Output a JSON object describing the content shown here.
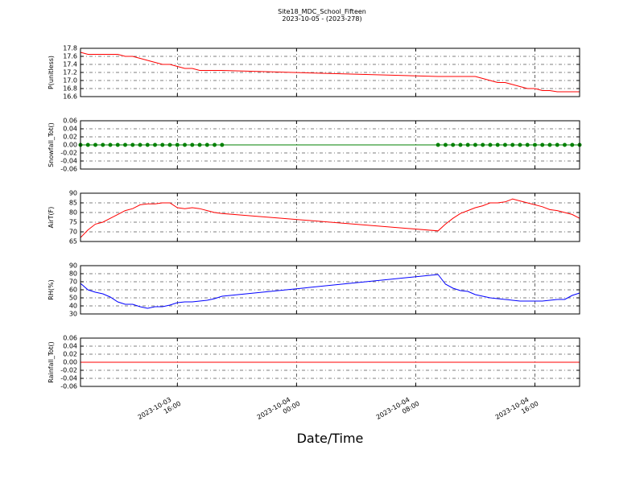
{
  "title": "Site18_MDC_School_Fifteen",
  "subtitle": "2023-10-05 - (2023-278)",
  "xlabel": "Date/Time",
  "x": [
    "2023-10-03 09:30",
    "2023-10-03 10:00",
    "2023-10-03 10:30",
    "2023-10-03 11:00",
    "2023-10-03 11:30",
    "2023-10-03 12:00",
    "2023-10-03 12:30",
    "2023-10-03 13:00",
    "2023-10-03 13:30",
    "2023-10-03 14:00",
    "2023-10-03 14:30",
    "2023-10-03 15:00",
    "2023-10-03 15:30",
    "2023-10-03 16:00",
    "2023-10-03 16:30",
    "2023-10-03 17:00",
    "2023-10-03 17:30",
    "2023-10-03 18:00",
    "2023-10-03 18:30",
    "2023-10-03 19:00",
    "2023-10-04 09:30",
    "2023-10-04 10:00",
    "2023-10-04 10:30",
    "2023-10-04 11:00",
    "2023-10-04 11:30",
    "2023-10-04 12:00",
    "2023-10-04 12:30",
    "2023-10-04 13:00",
    "2023-10-04 13:30",
    "2023-10-04 14:00",
    "2023-10-04 14:30",
    "2023-10-04 15:00",
    "2023-10-04 15:30",
    "2023-10-04 16:00",
    "2023-10-04 16:30",
    "2023-10-04 17:00",
    "2023-10-04 17:30",
    "2023-10-04 18:00",
    "2023-10-04 18:30",
    "2023-10-04 19:00"
  ],
  "xlim": [
    "2023-10-03 09:30",
    "2023-10-04 19:00"
  ],
  "xticks": [
    {
      "value": "2023-10-03 16:00",
      "label": "2023-10-03\n16:00"
    },
    {
      "value": "2023-10-04 00:00",
      "label": "2023-10-04\n00:00"
    },
    {
      "value": "2023-10-04 08:00",
      "label": "2023-10-04\n08:00"
    },
    {
      "value": "2023-10-04 16:00",
      "label": "2023-10-04\n16:00"
    }
  ],
  "chart_data": [
    {
      "type": "line",
      "ylabel": "P(unitless)",
      "ylim": [
        16.6,
        17.8
      ],
      "grid": true,
      "yticks": [
        16.6,
        16.8,
        {
          "value": 17.0,
          "label": "17.0"
        },
        17.2,
        17.4,
        17.6,
        17.8
      ],
      "series": [
        {
          "color": "#ff0000",
          "values": [
            17.7,
            17.65,
            17.65,
            17.65,
            17.65,
            17.65,
            17.6,
            17.6,
            17.55,
            17.5,
            17.45,
            17.4,
            17.4,
            17.35,
            17.3,
            17.3,
            17.25,
            17.25,
            17.25,
            17.25,
            17.1,
            17.1,
            17.1,
            17.1,
            17.1,
            17.1,
            17.05,
            17.0,
            16.95,
            16.95,
            16.9,
            16.85,
            16.8,
            16.8,
            16.75,
            16.75,
            16.72,
            16.72,
            16.72,
            16.72
          ]
        }
      ]
    },
    {
      "type": "line",
      "ylabel": "Snowfall_Tot()",
      "ylim": [
        -0.06,
        0.06
      ],
      "grid": true,
      "yticks": [
        -0.06,
        -0.04,
        -0.02,
        {
          "value": 0,
          "label": "0.00"
        },
        0.02,
        0.04,
        0.06
      ],
      "series": [
        {
          "color": "#008000",
          "marker": "o",
          "values": [
            0,
            0,
            0,
            0,
            0,
            0,
            0,
            0,
            0,
            0,
            0,
            0,
            0,
            0,
            0,
            0,
            0,
            0,
            0,
            0,
            0,
            0,
            0,
            0,
            0,
            0,
            0,
            0,
            0,
            0,
            0,
            0,
            0,
            0,
            0,
            0,
            0,
            0,
            0,
            0
          ]
        }
      ]
    },
    {
      "type": "line",
      "ylabel": "AirT(F)",
      "ylim": [
        65,
        90
      ],
      "grid": true,
      "yticks": [
        65,
        70,
        75,
        80,
        85,
        90
      ],
      "series": [
        {
          "color": "#ff0000",
          "values": [
            67,
            71,
            74,
            75,
            77,
            79,
            81,
            82,
            84,
            84.5,
            84.5,
            85,
            85,
            82.5,
            82,
            82.5,
            82,
            81,
            80,
            79.5,
            70.5,
            74,
            77,
            79.5,
            81,
            82.5,
            83.5,
            85,
            85,
            85.5,
            87,
            86,
            85,
            84,
            83,
            81.5,
            81,
            80,
            79,
            77
          ]
        }
      ]
    },
    {
      "type": "line",
      "ylabel": "RH(%)",
      "ylim": [
        30,
        90
      ],
      "grid": true,
      "yticks": [
        30,
        40,
        50,
        60,
        70,
        80,
        90
      ],
      "series": [
        {
          "color": "#0000ff",
          "values": [
            68,
            60,
            57,
            55,
            51,
            45,
            42,
            42,
            39,
            37,
            39,
            39,
            41,
            44,
            45,
            45,
            46,
            47,
            49,
            52,
            79,
            67,
            62,
            59,
            58,
            54,
            52,
            50,
            49,
            48,
            47,
            46,
            46,
            46,
            46,
            47,
            48,
            48,
            53,
            56
          ]
        }
      ]
    },
    {
      "type": "line",
      "ylabel": "Rainfall_Tot()",
      "ylim": [
        -0.06,
        0.06
      ],
      "grid": true,
      "yticks": [
        -0.06,
        -0.04,
        -0.02,
        {
          "value": 0,
          "label": "0.00"
        },
        0.02,
        0.04,
        0.06
      ],
      "series": [
        {
          "color": "#ff0000",
          "values": [
            0,
            0,
            0,
            0,
            0,
            0,
            0,
            0,
            0,
            0,
            0,
            0,
            0,
            0,
            0,
            0,
            0,
            0,
            0,
            0,
            0,
            0,
            0,
            0,
            0,
            0,
            0,
            0,
            0,
            0,
            0,
            0,
            0,
            0,
            0,
            0,
            0,
            0,
            0,
            0
          ]
        }
      ]
    }
  ]
}
